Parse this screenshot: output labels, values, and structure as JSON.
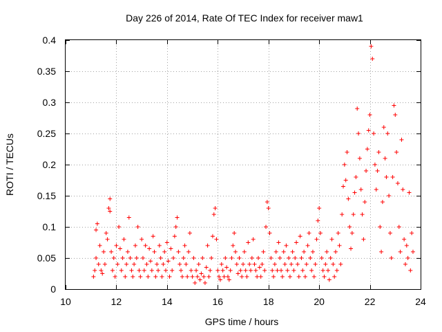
{
  "chart_data": {
    "type": "scatter",
    "title": "Day 226 of 2014, Rate Of TEC Index for receiver maw1",
    "xlabel": "GPS time / hours",
    "ylabel": "ROTI / TECUs",
    "xlim": [
      10,
      24
    ],
    "ylim": [
      0,
      0.4
    ],
    "grid": true,
    "x_ticks": [
      10,
      12,
      14,
      16,
      18,
      20,
      22,
      24
    ],
    "x_tick_labels": [
      "10",
      "12",
      "14",
      "16",
      "18",
      "20",
      "22",
      "24"
    ],
    "y_ticks": [
      0,
      0.05,
      0.1,
      0.15,
      0.2,
      0.25,
      0.3,
      0.35,
      0.4
    ],
    "y_tick_labels": [
      "0",
      "0.05",
      "0.1",
      "0.15",
      "0.2",
      "0.25",
      "0.3",
      "0.35",
      "0.4"
    ],
    "marker": "+",
    "color": "#ff0000",
    "series": [
      {
        "name": "ROTI",
        "points": [
          [
            11.1,
            0.02
          ],
          [
            11.15,
            0.03
          ],
          [
            11.2,
            0.05
          ],
          [
            11.2,
            0.095
          ],
          [
            11.25,
            0.105
          ],
          [
            11.3,
            0.04
          ],
          [
            11.35,
            0.07
          ],
          [
            11.4,
            0.03
          ],
          [
            11.45,
            0.025
          ],
          [
            11.5,
            0.06
          ],
          [
            11.55,
            0.04
          ],
          [
            11.6,
            0.09
          ],
          [
            11.65,
            0.08
          ],
          [
            11.7,
            0.13
          ],
          [
            11.75,
            0.145
          ],
          [
            11.75,
            0.125
          ],
          [
            11.8,
            0.06
          ],
          [
            11.85,
            0.03
          ],
          [
            11.9,
            0.05
          ],
          [
            11.95,
            0.02
          ],
          [
            12.0,
            0.07
          ],
          [
            12.05,
            0.04
          ],
          [
            12.1,
            0.1
          ],
          [
            12.15,
            0.065
          ],
          [
            12.2,
            0.03
          ],
          [
            12.25,
            0.05
          ],
          [
            12.3,
            0.08
          ],
          [
            12.35,
            0.02
          ],
          [
            12.4,
            0.04
          ],
          [
            12.45,
            0.06
          ],
          [
            12.5,
            0.115
          ],
          [
            12.55,
            0.05
          ],
          [
            12.6,
            0.03
          ],
          [
            12.65,
            0.02
          ],
          [
            12.7,
            0.04
          ],
          [
            12.75,
            0.07
          ],
          [
            12.8,
            0.05
          ],
          [
            12.85,
            0.1
          ],
          [
            12.9,
            0.03
          ],
          [
            12.95,
            0.02
          ],
          [
            13.0,
            0.08
          ],
          [
            13.05,
            0.05
          ],
          [
            13.1,
            0.03
          ],
          [
            13.15,
            0.07
          ],
          [
            13.2,
            0.04
          ],
          [
            13.25,
            0.02
          ],
          [
            13.3,
            0.065
          ],
          [
            13.35,
            0.045
          ],
          [
            13.4,
            0.03
          ],
          [
            13.45,
            0.085
          ],
          [
            13.5,
            0.06
          ],
          [
            13.55,
            0.02
          ],
          [
            13.6,
            0.04
          ],
          [
            13.65,
            0.03
          ],
          [
            13.7,
            0.07
          ],
          [
            13.75,
            0.05
          ],
          [
            13.8,
            0.02
          ],
          [
            13.85,
            0.04
          ],
          [
            13.9,
            0.06
          ],
          [
            13.95,
            0.03
          ],
          [
            14.0,
            0.075
          ],
          [
            14.05,
            0.045
          ],
          [
            14.1,
            0.02
          ],
          [
            14.15,
            0.065
          ],
          [
            14.2,
            0.03
          ],
          [
            14.25,
            0.05
          ],
          [
            14.3,
            0.085
          ],
          [
            14.35,
            0.1
          ],
          [
            14.4,
            0.115
          ],
          [
            14.45,
            0.06
          ],
          [
            14.5,
            0.04
          ],
          [
            14.55,
            0.03
          ],
          [
            14.6,
            0.02
          ],
          [
            14.65,
            0.05
          ],
          [
            14.7,
            0.07
          ],
          [
            14.75,
            0.04
          ],
          [
            14.8,
            0.02
          ],
          [
            14.85,
            0.06
          ],
          [
            14.9,
            0.09
          ],
          [
            14.95,
            0.03
          ],
          [
            15.0,
            0.02
          ],
          [
            15.05,
            0.05
          ],
          [
            15.1,
            0.01
          ],
          [
            15.15,
            0.03
          ],
          [
            15.2,
            0.02
          ],
          [
            15.25,
            0.04
          ],
          [
            15.3,
            0.015
          ],
          [
            15.35,
            0.025
          ],
          [
            15.4,
            0.05
          ],
          [
            15.45,
            0.02
          ],
          [
            15.5,
            0.01
          ],
          [
            15.55,
            0.035
          ],
          [
            15.6,
            0.07
          ],
          [
            15.65,
            0.02
          ],
          [
            15.7,
            0.03
          ],
          [
            15.75,
            0.05
          ],
          [
            15.8,
            0.085
          ],
          [
            15.85,
            0.12
          ],
          [
            15.9,
            0.13
          ],
          [
            15.95,
            0.08
          ],
          [
            16.0,
            0.03
          ],
          [
            16.05,
            0.02
          ],
          [
            16.1,
            0.015
          ],
          [
            16.15,
            0.04
          ],
          [
            16.2,
            0.03
          ],
          [
            16.25,
            0.02
          ],
          [
            16.3,
            0.05
          ],
          [
            16.35,
            0.035
          ],
          [
            16.4,
            0.02
          ],
          [
            16.45,
            0.015
          ],
          [
            16.5,
            0.03
          ],
          [
            16.55,
            0.05
          ],
          [
            16.6,
            0.07
          ],
          [
            16.65,
            0.09
          ],
          [
            16.7,
            0.06
          ],
          [
            16.75,
            0.04
          ],
          [
            16.8,
            0.025
          ],
          [
            16.85,
            0.05
          ],
          [
            16.9,
            0.03
          ],
          [
            16.95,
            0.02
          ],
          [
            17.0,
            0.04
          ],
          [
            17.05,
            0.06
          ],
          [
            17.1,
            0.03
          ],
          [
            17.15,
            0.02
          ],
          [
            17.2,
            0.075
          ],
          [
            17.25,
            0.04
          ],
          [
            17.3,
            0.03
          ],
          [
            17.35,
            0.05
          ],
          [
            17.4,
            0.08
          ],
          [
            17.45,
            0.04
          ],
          [
            17.5,
            0.03
          ],
          [
            17.55,
            0.02
          ],
          [
            17.6,
            0.05
          ],
          [
            17.65,
            0.035
          ],
          [
            17.7,
            0.02
          ],
          [
            17.75,
            0.04
          ],
          [
            17.8,
            0.06
          ],
          [
            17.85,
            0.03
          ],
          [
            17.9,
            0.1
          ],
          [
            17.95,
            0.14
          ],
          [
            18.0,
            0.13
          ],
          [
            18.05,
            0.09
          ],
          [
            18.1,
            0.05
          ],
          [
            18.15,
            0.03
          ],
          [
            18.2,
            0.02
          ],
          [
            18.25,
            0.04
          ],
          [
            18.3,
            0.06
          ],
          [
            18.35,
            0.03
          ],
          [
            18.4,
            0.075
          ],
          [
            18.45,
            0.05
          ],
          [
            18.5,
            0.03
          ],
          [
            18.55,
            0.02
          ],
          [
            18.6,
            0.06
          ],
          [
            18.65,
            0.04
          ],
          [
            18.7,
            0.07
          ],
          [
            18.75,
            0.03
          ],
          [
            18.8,
            0.05
          ],
          [
            18.85,
            0.02
          ],
          [
            18.9,
            0.04
          ],
          [
            18.95,
            0.06
          ],
          [
            19.0,
            0.03
          ],
          [
            19.05,
            0.05
          ],
          [
            19.1,
            0.075
          ],
          [
            19.15,
            0.04
          ],
          [
            19.2,
            0.02
          ],
          [
            19.25,
            0.085
          ],
          [
            19.3,
            0.05
          ],
          [
            19.35,
            0.03
          ],
          [
            19.4,
            0.06
          ],
          [
            19.45,
            0.02
          ],
          [
            19.5,
            0.04
          ],
          [
            19.55,
            0.07
          ],
          [
            19.6,
            0.09
          ],
          [
            19.65,
            0.05
          ],
          [
            19.7,
            0.03
          ],
          [
            19.75,
            0.06
          ],
          [
            19.8,
            0.02
          ],
          [
            19.85,
            0.04
          ],
          [
            19.9,
            0.08
          ],
          [
            19.95,
            0.11
          ],
          [
            20.0,
            0.13
          ],
          [
            20.05,
            0.09
          ],
          [
            20.1,
            0.05
          ],
          [
            20.15,
            0.03
          ],
          [
            20.2,
            0.02
          ],
          [
            20.25,
            0.04
          ],
          [
            20.3,
            0.06
          ],
          [
            20.35,
            0.03
          ],
          [
            20.4,
            0.015
          ],
          [
            20.45,
            0.05
          ],
          [
            20.5,
            0.08
          ],
          [
            20.55,
            0.04
          ],
          [
            20.6,
            0.02
          ],
          [
            20.65,
            0.06
          ],
          [
            20.7,
            0.03
          ],
          [
            20.75,
            0.09
          ],
          [
            20.8,
            0.07
          ],
          [
            20.85,
            0.04
          ],
          [
            20.9,
            0.12
          ],
          [
            20.95,
            0.165
          ],
          [
            21.0,
            0.2
          ],
          [
            21.05,
            0.175
          ],
          [
            21.1,
            0.22
          ],
          [
            21.15,
            0.145
          ],
          [
            21.2,
            0.1
          ],
          [
            21.25,
            0.065
          ],
          [
            21.3,
            0.09
          ],
          [
            21.35,
            0.12
          ],
          [
            21.4,
            0.155
          ],
          [
            21.45,
            0.18
          ],
          [
            21.5,
            0.29
          ],
          [
            21.55,
            0.25
          ],
          [
            21.6,
            0.21
          ],
          [
            21.65,
            0.16
          ],
          [
            21.7,
            0.12
          ],
          [
            21.75,
            0.08
          ],
          [
            21.8,
            0.14
          ],
          [
            21.85,
            0.19
          ],
          [
            21.9,
            0.225
          ],
          [
            21.95,
            0.255
          ],
          [
            22.0,
            0.28
          ],
          [
            22.05,
            0.39
          ],
          [
            22.1,
            0.37
          ],
          [
            22.15,
            0.25
          ],
          [
            22.2,
            0.2
          ],
          [
            22.25,
            0.16
          ],
          [
            22.3,
            0.19
          ],
          [
            22.35,
            0.22
          ],
          [
            22.4,
            0.1
          ],
          [
            22.45,
            0.06
          ],
          [
            22.5,
            0.14
          ],
          [
            22.55,
            0.26
          ],
          [
            22.6,
            0.21
          ],
          [
            22.65,
            0.18
          ],
          [
            22.7,
            0.25
          ],
          [
            22.75,
            0.15
          ],
          [
            22.8,
            0.09
          ],
          [
            22.85,
            0.05
          ],
          [
            22.9,
            0.18
          ],
          [
            22.95,
            0.295
          ],
          [
            23.0,
            0.28
          ],
          [
            23.05,
            0.22
          ],
          [
            23.1,
            0.17
          ],
          [
            23.15,
            0.1
          ],
          [
            23.2,
            0.06
          ],
          [
            23.25,
            0.24
          ],
          [
            23.3,
            0.16
          ],
          [
            23.35,
            0.08
          ],
          [
            23.4,
            0.04
          ],
          [
            23.45,
            0.07
          ],
          [
            23.5,
            0.05
          ],
          [
            23.55,
            0.155
          ],
          [
            23.6,
            0.03
          ],
          [
            23.65,
            0.09
          ],
          [
            23.7,
            0.06
          ]
        ]
      }
    ]
  }
}
